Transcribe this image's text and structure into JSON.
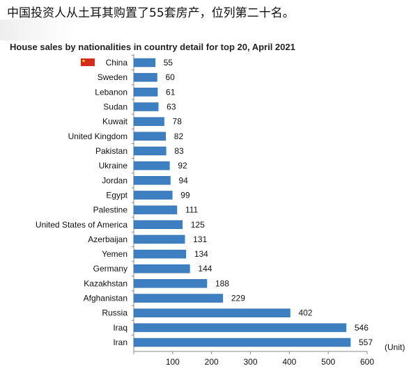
{
  "headline": "中国投资人从土耳其购置了55套房产，位列第二十名。",
  "chart_data": {
    "type": "bar",
    "orientation": "horizontal",
    "title": "House sales by nationalities in country detail for top 20, April 2021",
    "categories": [
      "China",
      "Sweden",
      "Lebanon",
      "Sudan",
      "Kuwait",
      "United Kingdom",
      "Pakistan",
      "Ukraine",
      "Jordan",
      "Egypt",
      "Palestine",
      "United States of America",
      "Azerbaijan",
      "Yemen",
      "Germany",
      "Kazakhstan",
      "Afghanistan",
      "Russia",
      "Iraq",
      "Iran"
    ],
    "values": [
      55,
      60,
      61,
      63,
      78,
      82,
      83,
      92,
      94,
      99,
      111,
      125,
      131,
      134,
      144,
      188,
      229,
      402,
      546,
      557
    ],
    "xlim": [
      0,
      600
    ],
    "xticks": [
      100,
      200,
      300,
      400,
      500,
      600
    ],
    "unit_label": "(Unit)",
    "bar_color": "#3d7fc1",
    "highlight_flag": "china-flag-icon",
    "grid": false
  }
}
